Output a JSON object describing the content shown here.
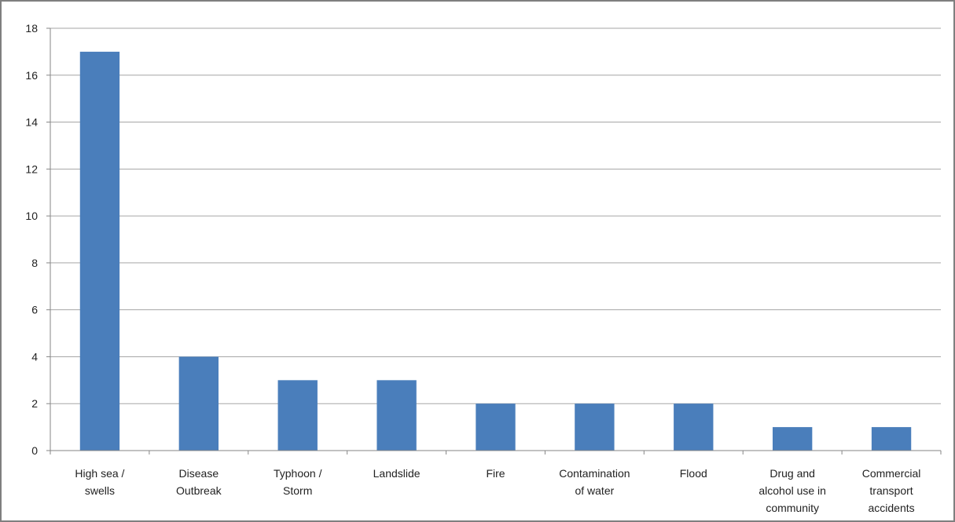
{
  "chart_data": {
    "type": "bar",
    "title": "",
    "xlabel": "",
    "ylabel": "",
    "categories": [
      [
        "High sea /",
        "swells"
      ],
      [
        "Disease",
        "Outbreak"
      ],
      [
        "Typhoon /",
        "Storm"
      ],
      [
        "Landslide"
      ],
      [
        "Fire"
      ],
      [
        "Contamination",
        "of water"
      ],
      [
        "Flood"
      ],
      [
        "Drug and",
        "alcohol use in",
        "community"
      ],
      [
        "Commercial",
        "transport",
        "accidents"
      ]
    ],
    "values": [
      17,
      4,
      3,
      3,
      2,
      2,
      2,
      1,
      1
    ],
    "ylim": [
      0,
      18
    ],
    "yticks": [
      0,
      2,
      4,
      6,
      8,
      10,
      12,
      14,
      16,
      18
    ],
    "grid": true,
    "legend": "none",
    "bar_color": "#4a7ebb",
    "grid_color": "#a6a6a6",
    "axis_color": "#868686"
  }
}
